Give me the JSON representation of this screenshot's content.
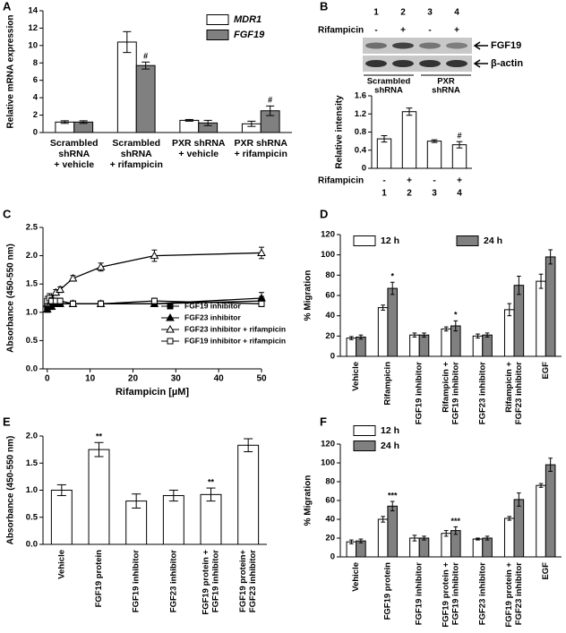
{
  "chart_data": [
    {
      "panel": "A",
      "type": "bar",
      "ylabel": "Relative mRNA expression",
      "categories": [
        [
          "Scrambled",
          "shRNA",
          "+ vehicle"
        ],
        [
          "Scrambled",
          "shRNA",
          "+ rifampicin"
        ],
        [
          "PXR shRNA",
          "+ vehicle"
        ],
        [
          "PXR shRNA",
          "+ rifampicin"
        ]
      ],
      "series": [
        {
          "name": "MDR1",
          "color": "#ffffff",
          "values": [
            1.2,
            10.4,
            1.4,
            1.0
          ],
          "errors": [
            0.15,
            1.2,
            0.1,
            0.3
          ]
        },
        {
          "name": "FGF19",
          "color": "#808080",
          "values": [
            1.2,
            7.7,
            1.1,
            2.5
          ],
          "errors": [
            0.15,
            0.4,
            0.3,
            0.55
          ],
          "significance": [
            null,
            "#",
            null,
            "#"
          ]
        }
      ],
      "ylim": [
        0,
        14
      ],
      "yticks": [
        0,
        2,
        4,
        6,
        8,
        10,
        12,
        14
      ],
      "legend": "upper right"
    },
    {
      "panel": "B",
      "type": "bar",
      "blot": {
        "lanes": [
          "1",
          "2",
          "3",
          "4"
        ],
        "treatment_label": "Rifampicin",
        "treatment": [
          "-",
          "+",
          "-",
          "+"
        ],
        "bands": [
          "FGF19",
          "β-actin"
        ],
        "groups": [
          [
            "Scrambled",
            "shRNA"
          ],
          [
            "PXR",
            "shRNA"
          ]
        ]
      },
      "ylabel": "Relative intensity",
      "row_label": "Rifampicin",
      "row": [
        "-",
        "+",
        "-",
        "+"
      ],
      "categories": [
        "1",
        "2",
        "3",
        "4"
      ],
      "values": [
        0.65,
        1.25,
        0.6,
        0.52
      ],
      "errors": [
        0.07,
        0.08,
        0.03,
        0.07
      ],
      "significance": [
        null,
        null,
        null,
        "#"
      ],
      "color": "#ffffff",
      "ylim": [
        0,
        1.6
      ],
      "yticks": [
        0,
        0.4,
        0.8,
        1.2,
        1.6
      ]
    },
    {
      "panel": "C",
      "type": "line",
      "xlabel": "Rifampicin [µM]",
      "ylabel": "Absorbance (450-550 nm)",
      "x": [
        0,
        0.5,
        1,
        2,
        3,
        6,
        12.5,
        25,
        50
      ],
      "series": [
        {
          "name": "FGF19 inhibitor",
          "color": "#000000",
          "marker": "square",
          "marker_fill": true,
          "values": [
            1.1,
            1.15,
            1.15,
            1.15,
            1.15,
            1.15,
            1.15,
            1.15,
            1.2
          ],
          "errors": [
            0.05,
            0.05,
            0.05,
            0.05,
            0.05,
            0.05,
            0.05,
            0.05,
            0.08
          ]
        },
        {
          "name": "FGF23 inhibitor",
          "color": "#000000",
          "marker": "triangle",
          "marker_fill": true,
          "values": [
            1.05,
            1.1,
            1.1,
            1.15,
            1.15,
            1.15,
            1.15,
            1.15,
            1.25
          ],
          "errors": [
            0.05,
            0.05,
            0.05,
            0.05,
            0.05,
            0.05,
            0.05,
            0.05,
            0.1
          ]
        },
        {
          "name": "FGF23 inhibitor + rifampicin",
          "color": "#000000",
          "marker": "triangle",
          "marker_fill": false,
          "values": [
            1.15,
            1.2,
            1.25,
            1.35,
            1.4,
            1.6,
            1.8,
            2.0,
            2.05
          ],
          "errors": [
            0.05,
            0.05,
            0.05,
            0.05,
            0.05,
            0.05,
            0.07,
            0.1,
            0.1
          ]
        },
        {
          "name": "FGF19 inhibitor + rifampicin",
          "color": "#000000",
          "marker": "square",
          "marker_fill": false,
          "values": [
            1.2,
            1.25,
            1.2,
            1.2,
            1.2,
            1.15,
            1.15,
            1.2,
            1.15
          ],
          "errors": [
            0.08,
            0.08,
            0.06,
            0.05,
            0.05,
            0.05,
            0.05,
            0.05,
            0.05
          ]
        }
      ],
      "xlim": [
        -1,
        50
      ],
      "xticks": [
        0,
        10,
        20,
        30,
        40,
        50
      ],
      "ylim": [
        0,
        2.5
      ],
      "yticks": [
        {
          "value": 0,
          "label": "0.0"
        },
        {
          "value": 0.5,
          "label": "0.5"
        },
        {
          "value": 1,
          "label": "1.0"
        },
        {
          "value": 1.5,
          "label": "1.5"
        },
        {
          "value": 2,
          "label": "2.0"
        },
        {
          "value": 2.5,
          "label": "2.5"
        }
      ],
      "legend": "lower right"
    },
    {
      "panel": "D",
      "type": "bar",
      "ylabel": "% Migration",
      "categories": [
        [
          "Vehicle"
        ],
        [
          "Rifampicin"
        ],
        [
          "FGF19 inhibitor"
        ],
        [
          "Rifampicin +",
          "FGF19 inhibitor"
        ],
        [
          "FGF23 inhibitor"
        ],
        [
          "Rifampicin +",
          "FGF23 inhibitor"
        ],
        [
          "EGF"
        ]
      ],
      "series": [
        {
          "name": "12 h",
          "color": "#ffffff",
          "values": [
            18,
            48,
            21,
            27,
            20,
            46,
            74
          ],
          "errors": [
            1.5,
            2.5,
            2,
            2,
            2,
            6,
            7
          ]
        },
        {
          "name": "24 h",
          "color": "#808080",
          "values": [
            19,
            67,
            21,
            30,
            21,
            70,
            98
          ],
          "errors": [
            2,
            6,
            2,
            5,
            2,
            9,
            7
          ],
          "significance": [
            null,
            "*",
            null,
            "*",
            null,
            null,
            null
          ]
        }
      ],
      "ylim": [
        0,
        120
      ],
      "yticks": [
        0,
        20,
        40,
        60,
        80,
        100,
        120
      ],
      "legend": "top"
    },
    {
      "panel": "E",
      "type": "bar",
      "ylabel": "Absorbance (450-550 nm)",
      "categories": [
        [
          "Vehicle"
        ],
        [
          "FGF19 protein"
        ],
        [
          "FGF19 inhibitor"
        ],
        [
          "FGF23 inhibitor"
        ],
        [
          "FGF19 protein +",
          "FGF19 inhibitor"
        ],
        [
          "FGF19 protein+",
          "FGF23 inhibitor"
        ]
      ],
      "values": [
        1.0,
        1.75,
        0.8,
        0.9,
        0.92,
        1.83
      ],
      "errors": [
        0.1,
        0.13,
        0.13,
        0.1,
        0.12,
        0.12
      ],
      "significance": [
        null,
        "**",
        null,
        null,
        "**",
        null
      ],
      "color": "#ffffff",
      "ylim": [
        0,
        2
      ],
      "yticks": [
        {
          "value": 0,
          "label": "0.0"
        },
        {
          "value": 0.5,
          "label": "0.5"
        },
        {
          "value": 1,
          "label": "1.0"
        },
        {
          "value": 1.5,
          "label": "1.5"
        },
        {
          "value": 2,
          "label": "2.0"
        }
      ]
    },
    {
      "panel": "F",
      "type": "bar",
      "ylabel": "% Migration",
      "categories": [
        [
          "Vehicle"
        ],
        [
          "FGF19 protein"
        ],
        [
          "FGF19 inhibitor"
        ],
        [
          "FGF19 protein +",
          "FGF19 inhibitor"
        ],
        [
          "FGF23 inhibitor"
        ],
        [
          "FGF19 protein +",
          "FGF23 inhibitor"
        ],
        [
          "EGF"
        ]
      ],
      "series": [
        {
          "name": "12 h",
          "color": "#ffffff",
          "values": [
            16,
            40,
            20,
            25,
            19,
            41,
            76
          ],
          "errors": [
            2,
            3,
            3,
            3,
            1,
            2,
            2
          ]
        },
        {
          "name": "24 h",
          "color": "#808080",
          "values": [
            17,
            54,
            20,
            28,
            20,
            61,
            98
          ],
          "errors": [
            2,
            5,
            2,
            4,
            2,
            7,
            7
          ],
          "significance": [
            null,
            "***",
            null,
            "***",
            null,
            null,
            null
          ]
        }
      ],
      "ylim": [
        0,
        120
      ],
      "yticks": [
        0,
        20,
        40,
        60,
        80,
        100,
        120
      ],
      "legend": "upper left"
    }
  ]
}
